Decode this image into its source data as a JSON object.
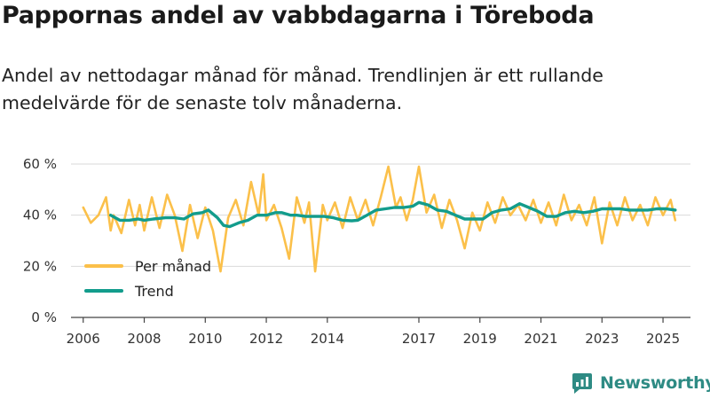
{
  "chart_data": {
    "type": "line",
    "title": "Pappornas andel av vabbdagarna i Töreboda",
    "subtitle": "Andel av nettodagar månad för månad. Trendlinjen är ett rullande medelvärde för de senaste tolv månaderna.",
    "xlabel": "",
    "ylabel": "",
    "xlim": [
      2005.6,
      2025.9
    ],
    "ylim": [
      0,
      60
    ],
    "yticks": [
      0,
      20,
      40,
      60
    ],
    "ytick_labels": [
      "0 %",
      "20 %",
      "40 %",
      "60 %"
    ],
    "xticks": [
      2006,
      2008,
      2010,
      2012,
      2014,
      2017,
      2019,
      2021,
      2023,
      2025
    ],
    "xtick_labels": [
      "2006",
      "2008",
      "2010",
      "2012",
      "2014",
      "2017",
      "2019",
      "2021",
      "2023",
      "2025"
    ],
    "grid": "horizontal",
    "legend_position": "bottom-left",
    "series": [
      {
        "name": "Per månad",
        "color": "#fbc04a",
        "x": [
          2006.0,
          2006.25,
          2006.5,
          2006.75,
          2006.9,
          2007.0,
          2007.25,
          2007.5,
          2007.7,
          2007.85,
          2008.0,
          2008.25,
          2008.5,
          2008.75,
          2009.0,
          2009.25,
          2009.5,
          2009.75,
          2010.0,
          2010.25,
          2010.5,
          2010.75,
          2011.0,
          2011.25,
          2011.5,
          2011.75,
          2011.9,
          2012.0,
          2012.25,
          2012.5,
          2012.75,
          2013.0,
          2013.25,
          2013.4,
          2013.6,
          2013.85,
          2014.0,
          2014.25,
          2014.5,
          2014.75,
          2015.0,
          2015.25,
          2015.5,
          2015.75,
          2016.0,
          2016.25,
          2016.4,
          2016.6,
          2016.8,
          2017.0,
          2017.25,
          2017.5,
          2017.75,
          2018.0,
          2018.25,
          2018.5,
          2018.75,
          2019.0,
          2019.25,
          2019.5,
          2019.75,
          2020.0,
          2020.25,
          2020.5,
          2020.75,
          2021.0,
          2021.25,
          2021.5,
          2021.75,
          2022.0,
          2022.25,
          2022.5,
          2022.75,
          2023.0,
          2023.25,
          2023.5,
          2023.75,
          2024.0,
          2024.25,
          2024.5,
          2024.75,
          2025.0,
          2025.25,
          2025.4
        ],
        "values": [
          43,
          37,
          40,
          47,
          34,
          40,
          33,
          46,
          36,
          44,
          34,
          47,
          35,
          48,
          40,
          26,
          44,
          31,
          43,
          34,
          18,
          39,
          46,
          36,
          53,
          40,
          56,
          38,
          44,
          35,
          23,
          47,
          37,
          45,
          18,
          44,
          38,
          45,
          35,
          47,
          38,
          46,
          36,
          47,
          59,
          43,
          47,
          38,
          46,
          59,
          41,
          48,
          35,
          46,
          38,
          27,
          41,
          34,
          45,
          37,
          47,
          40,
          44,
          38,
          46,
          37,
          45,
          36,
          48,
          38,
          44,
          36,
          47,
          29,
          45,
          36,
          47,
          38,
          44,
          36,
          47,
          40,
          46,
          38
        ]
      },
      {
        "name": "Trend",
        "color": "#129c8c",
        "x": [
          2006.9,
          2007.2,
          2007.5,
          2007.8,
          2008.0,
          2008.3,
          2008.7,
          2009.0,
          2009.3,
          2009.6,
          2009.9,
          2010.1,
          2010.4,
          2010.6,
          2010.8,
          2011.1,
          2011.4,
          2011.7,
          2012.0,
          2012.3,
          2012.5,
          2012.8,
          2013.0,
          2013.3,
          2013.6,
          2013.9,
          2014.2,
          2014.5,
          2014.8,
          2015.0,
          2015.3,
          2015.6,
          2015.9,
          2016.2,
          2016.5,
          2016.8,
          2017.0,
          2017.3,
          2017.6,
          2017.9,
          2018.2,
          2018.5,
          2018.8,
          2019.1,
          2019.4,
          2019.7,
          2020.0,
          2020.3,
          2020.6,
          2020.9,
          2021.2,
          2021.5,
          2021.8,
          2022.1,
          2022.4,
          2022.7,
          2023.0,
          2023.3,
          2023.6,
          2023.9,
          2024.2,
          2024.5,
          2024.8,
          2025.1,
          2025.4
        ],
        "values": [
          40,
          38,
          38,
          38.5,
          38,
          38.5,
          39,
          39,
          38.5,
          40.5,
          41,
          42,
          39,
          36,
          35.5,
          37,
          38,
          40,
          40,
          41,
          41,
          40,
          40,
          39.5,
          39.5,
          39.5,
          39,
          38,
          37.8,
          38,
          40,
          42,
          42.5,
          43,
          43,
          43.5,
          45,
          44,
          42,
          41.5,
          40,
          38.5,
          38.5,
          38.5,
          41,
          42,
          42.5,
          44.5,
          43,
          41.5,
          39.5,
          39.5,
          41,
          41.5,
          41,
          41.5,
          42.5,
          42.5,
          42.5,
          42,
          42,
          42,
          42.5,
          42.5,
          42
        ]
      }
    ]
  },
  "brand": {
    "name": "Newsworthy",
    "logo_color": "#2e8b84"
  }
}
